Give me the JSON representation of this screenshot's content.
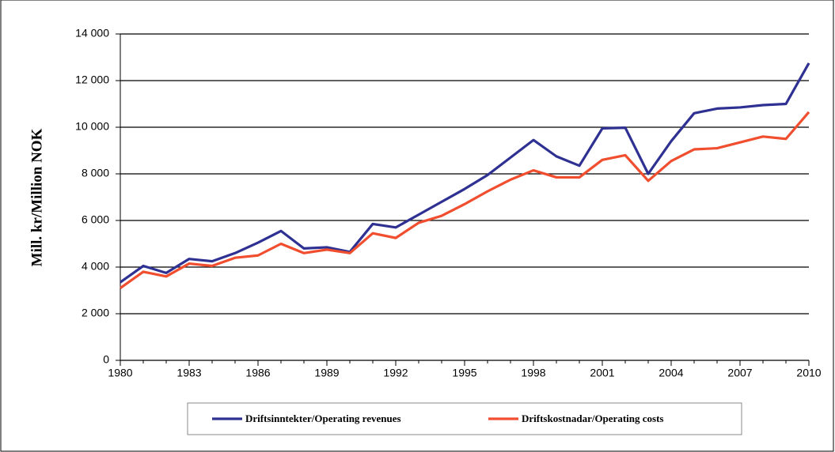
{
  "chart_data": {
    "type": "line",
    "y_label": "Mill. kr/Million NOK",
    "x": [
      1980,
      1981,
      1982,
      1983,
      1984,
      1985,
      1986,
      1987,
      1988,
      1989,
      1990,
      1991,
      1992,
      1993,
      1994,
      1995,
      1996,
      1997,
      1998,
      1999,
      2000,
      2001,
      2002,
      2003,
      2004,
      2005,
      2006,
      2007,
      2008,
      2009,
      2010
    ],
    "series": [
      {
        "name": "Driftsinntekter/Operating revenues",
        "color": "#2e3192",
        "values": [
          3350,
          4050,
          3750,
          4350,
          4250,
          4600,
          5050,
          5550,
          4800,
          4850,
          4650,
          5850,
          5700,
          6250,
          6800,
          7350,
          7950,
          8700,
          9450,
          8750,
          8350,
          9950,
          9980,
          8000,
          9400,
          10600,
          10800,
          10850,
          10950,
          11000,
          12750
        ]
      },
      {
        "name": "Driftskostnadar/Operating costs",
        "color": "#f04e2f",
        "values": [
          3100,
          3800,
          3600,
          4150,
          4050,
          4400,
          4500,
          5000,
          4600,
          4750,
          4600,
          5450,
          5250,
          5900,
          6200,
          6700,
          7250,
          7750,
          8150,
          7850,
          7850,
          8600,
          8800,
          7700,
          8550,
          9050,
          9100,
          9350,
          9600,
          9500,
          10650
        ]
      }
    ],
    "xlim": [
      1980,
      2010
    ],
    "xticks": [
      1980,
      1983,
      1986,
      1989,
      1992,
      1995,
      1998,
      2001,
      2004,
      2007,
      2010
    ],
    "ylim": [
      0,
      14000
    ],
    "yticks": [
      0,
      {
        "value": 2000,
        "label": "2 000"
      },
      {
        "value": 4000,
        "label": "4 000"
      },
      {
        "value": 6000,
        "label": "6 000"
      },
      {
        "value": 8000,
        "label": "8 000"
      },
      {
        "value": 10000,
        "label": "10 000"
      },
      {
        "value": 12000,
        "label": "12 000"
      },
      {
        "value": 14000,
        "label": "14 000"
      }
    ],
    "grid": true
  }
}
